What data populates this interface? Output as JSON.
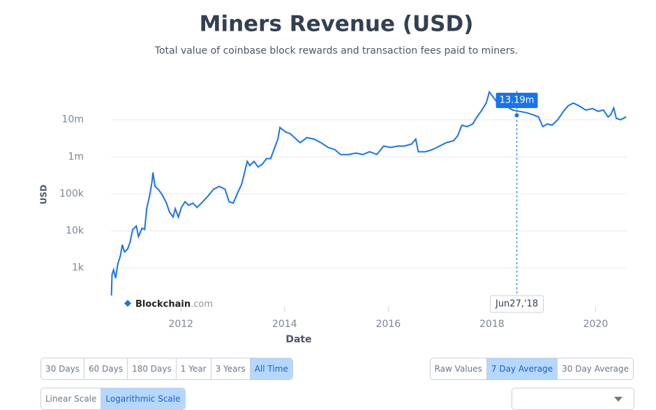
{
  "chart_data": {
    "type": "line",
    "title": "Miners Revenue (USD)",
    "subtitle": "Total value of coinbase block rewards and transaction fees paid to miners.",
    "x_label": "Date",
    "y_label": "USD",
    "color": "#1a73e8",
    "log_y": true,
    "grid": true,
    "xlim": [
      2010.65,
      2020.6
    ],
    "xticks": [
      2012,
      2014,
      2016,
      2018,
      2020
    ],
    "ylim": [
      170,
      61000000
    ],
    "yticks": [
      {
        "value": 1000,
        "label": "1k"
      },
      {
        "value": 10000,
        "label": "10k"
      },
      {
        "value": 100000,
        "label": "100k"
      },
      {
        "value": 1000000,
        "label": "1m"
      },
      {
        "value": 10000000,
        "label": "10m"
      }
    ],
    "x": [
      2010.66,
      2010.67,
      2010.7,
      2010.74,
      2010.78,
      2010.83,
      2010.87,
      2010.91,
      2010.97,
      2011.02,
      2011.07,
      2011.14,
      2011.18,
      2011.25,
      2011.3,
      2011.34,
      2011.4,
      2011.44,
      2011.46,
      2011.5,
      2011.56,
      2011.64,
      2011.72,
      2011.78,
      2011.85,
      2011.89,
      2011.95,
      2012.01,
      2012.08,
      2012.15,
      2012.23,
      2012.31,
      2012.42,
      2012.52,
      2012.63,
      2012.74,
      2012.85,
      2012.93,
      2013.01,
      2013.09,
      2013.17,
      2013.22,
      2013.28,
      2013.33,
      2013.41,
      2013.49,
      2013.57,
      2013.65,
      2013.73,
      2013.81,
      2013.87,
      2013.91,
      2013.95,
      2014.03,
      2014.11,
      2014.19,
      2014.3,
      2014.43,
      2014.57,
      2014.7,
      2014.84,
      2014.97,
      2015.08,
      2015.24,
      2015.37,
      2015.51,
      2015.64,
      2015.78,
      2015.91,
      2016.05,
      2016.18,
      2016.31,
      2016.45,
      2016.53,
      2016.58,
      2016.72,
      2016.85,
      2016.99,
      2017.12,
      2017.26,
      2017.34,
      2017.42,
      2017.52,
      2017.63,
      2017.71,
      2017.79,
      2017.89,
      2017.95,
      2018.03,
      2018.13,
      2018.26,
      2018.4,
      2018.53,
      2018.67,
      2018.8,
      2018.9,
      2018.98,
      2019.07,
      2019.16,
      2019.27,
      2019.38,
      2019.47,
      2019.57,
      2019.68,
      2019.81,
      2019.94,
      2020.05,
      2020.15,
      2020.24,
      2020.29,
      2020.35,
      2020.4,
      2020.48,
      2020.59
    ],
    "values": [
      179,
      655,
      885,
      527,
      1250,
      2100,
      4200,
      2700,
      3200,
      5000,
      10900,
      13500,
      7000,
      11800,
      10900,
      39600,
      94000,
      205000,
      375000,
      158000,
      133000,
      94000,
      56000,
      32000,
      23600,
      39600,
      23600,
      43000,
      61000,
      49000,
      56000,
      43000,
      61000,
      86000,
      133000,
      158000,
      133000,
      61000,
      56000,
      103000,
      180000,
      344000,
      750000,
      578000,
      750000,
      530000,
      630000,
      890000,
      890000,
      1780000,
      2990000,
      6200000,
      5500000,
      4600000,
      4200000,
      3300000,
      2400000,
      3300000,
      3000000,
      2400000,
      1780000,
      1560000,
      1150000,
      1150000,
      1260000,
      1150000,
      1370000,
      1150000,
      1940000,
      1780000,
      1940000,
      1940000,
      2200000,
      3000000,
      1370000,
      1370000,
      1560000,
      1940000,
      2400000,
      2700000,
      3700000,
      7100000,
      6500000,
      7700000,
      11900000,
      16800000,
      28200000,
      56000000,
      40000000,
      25900000,
      23700000,
      18300000,
      16800000,
      15400000,
      13500000,
      11900000,
      6500000,
      7700000,
      7100000,
      10000000,
      16800000,
      23700000,
      28200000,
      23700000,
      18300000,
      19900000,
      16800000,
      18300000,
      11900000,
      13500000,
      20800000,
      10900000,
      10000000,
      11900000
    ],
    "tooltip": {
      "x": 2018.48,
      "value": 13190000,
      "value_label": "13.19m",
      "x_text": "Jun27,'18"
    },
    "watermark": {
      "brand": "Blockchain",
      "suffix": ".com"
    }
  },
  "controls": {
    "range": {
      "options": [
        "30 Days",
        "60 Days",
        "180 Days",
        "1 Year",
        "3 Years",
        "All Time"
      ],
      "selected": 5
    },
    "average": {
      "options": [
        "Raw Values",
        "7 Day Average",
        "30 Day Average"
      ],
      "selected": 1
    },
    "scale": {
      "options": [
        "Linear Scale",
        "Logarithmic Scale"
      ],
      "selected": 1
    }
  }
}
